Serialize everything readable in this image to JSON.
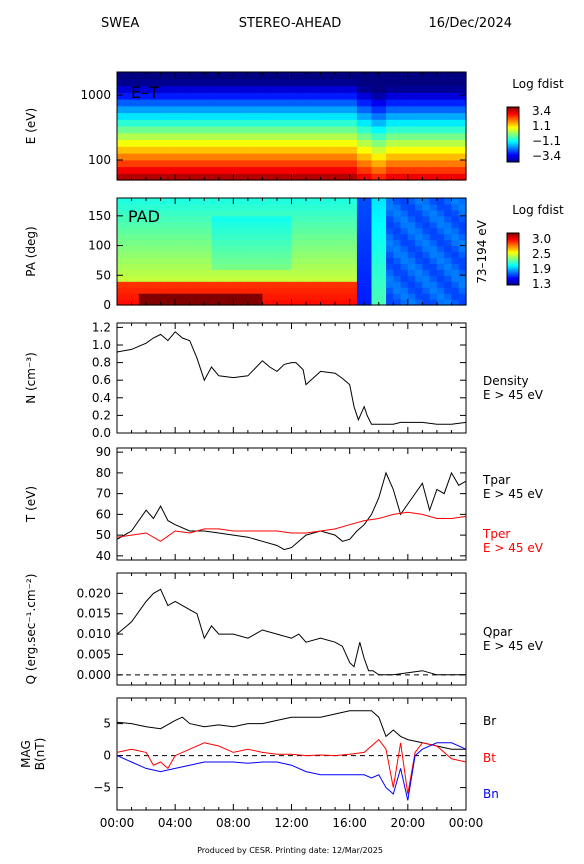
{
  "header": {
    "left": "SWEA",
    "center": "STEREO-AHEAD",
    "right": "16/Dec/2024"
  },
  "footer": "Produced by CESR.   Printing date: 12/Mar/2025",
  "colors": {
    "black": "#000000",
    "red": "#ff0000",
    "blue": "#0000ff"
  },
  "time_ticks": [
    "00:00",
    "04:00",
    "08:00",
    "12:00",
    "16:00",
    "20:00",
    "00:00"
  ],
  "chart_data": [
    {
      "id": "et",
      "type": "heatmap",
      "label": "E–T",
      "ylabel": "E (eV)",
      "scale": "log",
      "yticks": [
        "1000",
        "100"
      ],
      "colorbar": {
        "title": "Log fdist",
        "ticks": [
          "3.4",
          "1.1",
          "−1.1",
          "−3.4"
        ],
        "range": [
          -3.4,
          3.4
        ]
      }
    },
    {
      "id": "pad",
      "type": "heatmap",
      "label": "PAD",
      "ylabel": "PA (deg)",
      "ylim": [
        0,
        180
      ],
      "yticks": [
        "0",
        "50",
        "100",
        "150"
      ],
      "right_label": "73–194 eV",
      "colorbar": {
        "title": "Log fdist",
        "ticks": [
          "3.0",
          "2.5",
          "1.9",
          "1.3"
        ],
        "range": [
          1.3,
          3.0
        ]
      }
    },
    {
      "id": "density",
      "type": "line",
      "ylabel": "N (cm⁻³)",
      "ylim": [
        0.0,
        1.25
      ],
      "yticks": [
        "0.0",
        "0.2",
        "0.4",
        "0.6",
        "0.8",
        "1.0",
        "1.2"
      ],
      "legend": [
        {
          "name": "Density",
          "sub": "E > 45 eV",
          "color": "#000000"
        }
      ],
      "series": [
        {
          "name": "Density",
          "color": "#000000",
          "x": [
            0,
            1,
            2,
            2.5,
            3,
            3.5,
            4,
            4.5,
            5,
            5.5,
            6,
            6.5,
            7,
            8,
            9,
            10,
            10.5,
            11,
            11.5,
            12,
            12.3,
            12.8,
            13,
            14,
            15,
            15.5,
            16,
            16.3,
            16.6,
            17,
            17.2,
            17.5,
            17.8,
            18,
            19,
            19.5,
            20,
            21,
            22,
            23,
            24
          ],
          "y": [
            0.92,
            0.95,
            1.02,
            1.08,
            1.12,
            1.05,
            1.15,
            1.08,
            1.05,
            0.85,
            0.6,
            0.75,
            0.65,
            0.63,
            0.65,
            0.82,
            0.75,
            0.7,
            0.78,
            0.8,
            0.8,
            0.72,
            0.55,
            0.7,
            0.68,
            0.62,
            0.55,
            0.3,
            0.15,
            0.3,
            0.2,
            0.1,
            0.1,
            0.1,
            0.1,
            0.12,
            0.12,
            0.12,
            0.1,
            0.1,
            0.12
          ]
        }
      ]
    },
    {
      "id": "temperature",
      "type": "line",
      "ylabel": "T (eV)",
      "ylim": [
        38,
        92
      ],
      "yticks": [
        "40",
        "50",
        "60",
        "70",
        "80",
        "90"
      ],
      "legend": [
        {
          "name": "Tpar",
          "sub": "E > 45 eV",
          "color": "#000000"
        },
        {
          "name": "Tper",
          "sub": "E > 45 eV",
          "color": "#ff0000"
        }
      ],
      "series": [
        {
          "name": "Tpar",
          "color": "#000000",
          "x": [
            0,
            1,
            2,
            2.5,
            3,
            3.5,
            4,
            5,
            6,
            7,
            8,
            9,
            10,
            11,
            11.5,
            12,
            13,
            14,
            15,
            15.5,
            16,
            16.5,
            17,
            17.5,
            18,
            18.5,
            19,
            19.5,
            20,
            20.5,
            21,
            21.5,
            22,
            22.5,
            23,
            23.5,
            24
          ],
          "y": [
            48,
            52,
            62,
            58,
            64,
            57,
            55,
            52,
            52,
            51,
            50,
            49,
            47,
            45,
            43,
            44,
            50,
            52,
            50,
            47,
            48,
            52,
            55,
            60,
            68,
            80,
            72,
            60,
            65,
            70,
            75,
            62,
            72,
            70,
            80,
            74,
            76
          ]
        },
        {
          "name": "Tper",
          "color": "#ff0000",
          "x": [
            0,
            1,
            2,
            3,
            4,
            5,
            6,
            7,
            8,
            9,
            10,
            11,
            12,
            13,
            14,
            15,
            16,
            17,
            18,
            19,
            20,
            21,
            22,
            23,
            24
          ],
          "y": [
            49,
            50,
            51,
            47,
            52,
            51,
            53,
            53,
            52,
            52,
            52,
            52,
            51,
            51,
            52,
            53,
            55,
            57,
            58,
            60,
            61,
            60,
            58,
            58,
            59
          ]
        }
      ]
    },
    {
      "id": "heatflux",
      "type": "line",
      "ylabel": "Q (erg.sec⁻¹.cm⁻²)",
      "ylim": [
        -0.0025,
        0.025
      ],
      "yticks": [
        "0.000",
        "0.005",
        "0.010",
        "0.015",
        "0.020"
      ],
      "legend": [
        {
          "name": "Qpar",
          "sub": "E > 45 eV",
          "color": "#000000"
        }
      ],
      "series": [
        {
          "name": "Qpar",
          "color": "#000000",
          "x": [
            0,
            1,
            2,
            2.5,
            3,
            3.5,
            4,
            5,
            5.5,
            6,
            6.5,
            7,
            8,
            9,
            10,
            11,
            12,
            12.5,
            13,
            14,
            15,
            15.5,
            16,
            16.3,
            16.7,
            17,
            17.3,
            17.6,
            18,
            19,
            20,
            21,
            22,
            23,
            24
          ],
          "y": [
            0.01,
            0.013,
            0.018,
            0.02,
            0.021,
            0.017,
            0.018,
            0.016,
            0.015,
            0.009,
            0.012,
            0.01,
            0.01,
            0.009,
            0.011,
            0.01,
            0.009,
            0.01,
            0.008,
            0.009,
            0.008,
            0.007,
            0.003,
            0.002,
            0.008,
            0.004,
            0.001,
            0.001,
            0.0,
            0.0,
            0.0005,
            0.001,
            0.0,
            0.0,
            0.0
          ]
        }
      ]
    },
    {
      "id": "mag",
      "type": "line",
      "ylabel": "MAG B(nT)",
      "ylim": [
        -8.5,
        9
      ],
      "yticks": [
        "5",
        "0",
        "−5"
      ],
      "legend": [
        {
          "name": "Br",
          "color": "#000000"
        },
        {
          "name": "Bt",
          "color": "#ff0000"
        },
        {
          "name": "Bn",
          "color": "#0000ff"
        }
      ],
      "series": [
        {
          "name": "Br",
          "color": "#000000",
          "x": [
            0,
            1,
            2,
            3,
            4,
            4.5,
            5,
            6,
            7,
            8,
            9,
            10,
            11,
            12,
            13,
            14,
            15,
            16,
            17,
            17.5,
            18,
            18.5,
            19,
            19.5,
            20,
            21,
            22,
            23,
            24
          ],
          "y": [
            5.2,
            5.0,
            4.5,
            4.2,
            5.5,
            6.0,
            5.0,
            4.5,
            4.8,
            4.5,
            5.0,
            5.0,
            5.5,
            6.0,
            6.0,
            6.0,
            6.5,
            7.0,
            7.0,
            7.0,
            6.0,
            3.0,
            4.0,
            3.0,
            2.5,
            2.0,
            1.5,
            1.0,
            1.0
          ]
        },
        {
          "name": "Bt",
          "color": "#ff0000",
          "x": [
            0,
            1,
            2,
            2.5,
            3,
            3.5,
            4,
            5,
            6,
            7,
            8,
            9,
            10,
            11,
            12,
            13,
            14,
            15,
            16,
            17,
            18,
            18.5,
            19,
            19.5,
            20,
            20.5,
            21,
            22,
            23,
            24
          ],
          "y": [
            0.5,
            1.0,
            0.5,
            -1.5,
            -1.0,
            -2.0,
            0.0,
            1.0,
            2.0,
            1.5,
            0.5,
            1.0,
            0.5,
            0.2,
            0.2,
            0.0,
            0.1,
            0.0,
            0.2,
            0.5,
            2.5,
            1.0,
            -5.0,
            2.0,
            -6.0,
            0.5,
            2.0,
            1.5,
            -0.5,
            -1.0
          ]
        },
        {
          "name": "Bn",
          "color": "#0000ff",
          "x": [
            0,
            1,
            2,
            3,
            4,
            5,
            6,
            7,
            8,
            9,
            10,
            11,
            12,
            13,
            14,
            15,
            16,
            17,
            17.5,
            18,
            18.5,
            19,
            19.5,
            20,
            20.5,
            21,
            22,
            23,
            24
          ],
          "y": [
            0.0,
            -1.0,
            -2.0,
            -2.5,
            -2.0,
            -1.5,
            -1.0,
            -1.0,
            -1.0,
            -1.2,
            -1.0,
            -1.0,
            -1.5,
            -2.5,
            -3.0,
            -3.0,
            -3.0,
            -3.0,
            -3.5,
            -3.0,
            -5.0,
            -6.0,
            -2.0,
            -7.0,
            0.0,
            1.0,
            2.0,
            2.0,
            1.0
          ]
        }
      ]
    }
  ]
}
